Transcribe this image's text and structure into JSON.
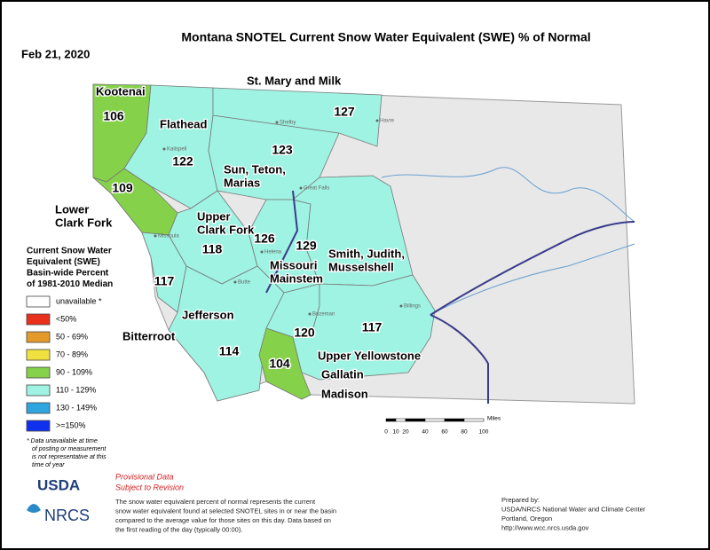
{
  "header": {
    "title": "Montana SNOTEL Current Snow Water Equivalent (SWE) % of Normal",
    "date": "Feb 21, 2020"
  },
  "basins": [
    {
      "name": [
        "Kootenai"
      ],
      "value": "106",
      "color": "#85d14a"
    },
    {
      "name": [
        "Flathead"
      ],
      "value": "122",
      "color": "#9ff3e2"
    },
    {
      "name": [
        "Lower",
        "Clark Fork"
      ],
      "value": "109",
      "color": "#85d14a"
    },
    {
      "name": [
        "Sun, Teton,",
        "Marias"
      ],
      "value": "123",
      "color": "#9ff3e2"
    },
    {
      "name": [
        "St. Mary and Milk"
      ],
      "value": "127",
      "color": "#9ff3e2"
    },
    {
      "name": [
        "Upper",
        "Clark Fork"
      ],
      "value": "118",
      "color": "#9ff3e2"
    },
    {
      "name": [
        "Missouri",
        "Mainstem"
      ],
      "value": "126",
      "color": "#9ff3e2"
    },
    {
      "name": [
        "Smith, Judith,",
        "Musselshell"
      ],
      "value": "129",
      "color": "#9ff3e2"
    },
    {
      "name": [
        "Bitterroot"
      ],
      "value": "117",
      "color": "#9ff3e2"
    },
    {
      "name": [
        "Jefferson"
      ],
      "value": "114",
      "color": "#9ff3e2"
    },
    {
      "name": [
        "Gallatin"
      ],
      "value": "120",
      "color": "#9ff3e2"
    },
    {
      "name": [
        "Madison"
      ],
      "value": "104",
      "color": "#85d14a"
    },
    {
      "name": [
        "Upper Yellowstone"
      ],
      "value": "117",
      "color": "#9ff3e2"
    }
  ],
  "cities": [
    "Kalispell",
    "Shelby",
    "Havre",
    "Great Falls",
    "Missoula",
    "Helena",
    "Butte",
    "Bozeman",
    "Billings"
  ],
  "legend": {
    "title": [
      "Current Snow Water",
      "Equivalent (SWE)",
      "Basin-wide Percent",
      "of 1981-2010 Median"
    ],
    "items": [
      {
        "label": "unavailable *",
        "color": "#ffffff"
      },
      {
        "label": "<50%",
        "color": "#e8301c"
      },
      {
        "label": "50 - 69%",
        "color": "#e39a2b"
      },
      {
        "label": "70 - 89%",
        "color": "#f0e040"
      },
      {
        "label": "90 - 109%",
        "color": "#85d14a"
      },
      {
        "label": "110 - 129%",
        "color": "#9ff3e2"
      },
      {
        "label": "130 - 149%",
        "color": "#2fa5e0"
      },
      {
        "label": ">=150%",
        "color": "#1030f0"
      }
    ],
    "footnote": [
      "* Data unavailable at time",
      "of posting or measurement",
      "is not representative at this",
      "time of year"
    ]
  },
  "scale": {
    "ticks": [
      0,
      10,
      20,
      40,
      60,
      80,
      100
    ],
    "unit": "Miles"
  },
  "provisional": [
    "Provisional Data",
    "Subject to Revision"
  ],
  "description": [
    "The snow water equivalent percent of normal represents the current",
    "snow water equivalent found at selected SNOTEL sites in or near the basin",
    "compared to the average value for those sites on this day. Data based on",
    "the first reading of the day (typically 00:00)."
  ],
  "prepared": [
    "Prepared by:",
    "USDA/NRCS National Water and Climate Center",
    "Portland, Oregon",
    "http://www.wcc.nrcs.usda.gov"
  ],
  "logos": {
    "usda": "USDA",
    "nrcs": "NRCS"
  }
}
